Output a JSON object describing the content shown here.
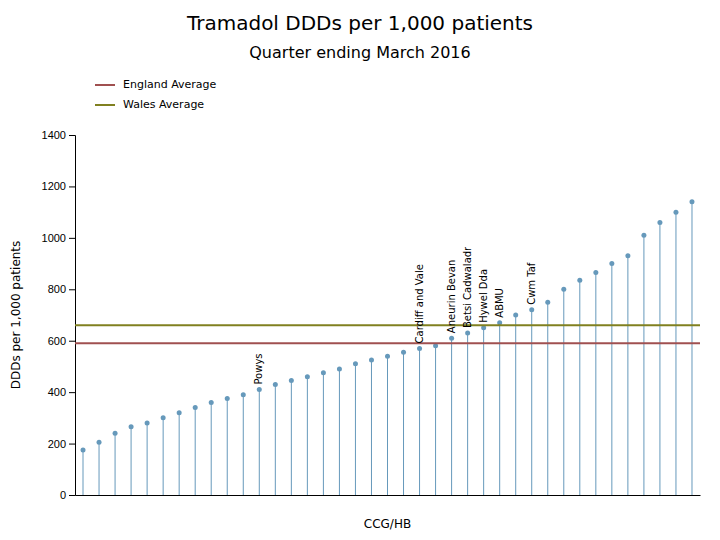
{
  "chart_data": {
    "type": "lollipop",
    "title": "Tramadol DDDs per 1,000 patients",
    "subtitle": "Quarter ending March 2016",
    "x_label": "CCG/HB",
    "y_label": "DDDs per 1,000 patients",
    "values": [
      175,
      205,
      240,
      265,
      280,
      300,
      320,
      340,
      360,
      375,
      390,
      410,
      430,
      445,
      460,
      475,
      490,
      510,
      525,
      540,
      555,
      570,
      580,
      610,
      630,
      650,
      670,
      700,
      720,
      750,
      800,
      835,
      865,
      900,
      930,
      1010,
      1060,
      1100,
      1140
    ],
    "color": "#6699BB",
    "reference_lines": [
      {
        "name": "England Average",
        "value": 590,
        "color": "#A05050"
      },
      {
        "name": "Wales Average",
        "value": 660,
        "color": "#808020"
      }
    ],
    "annotations": [
      {
        "text": "Powys",
        "index": 11
      },
      {
        "text": "Cardiff and Vale",
        "index": 21
      },
      {
        "text": "Aneurin Bevan",
        "index": 23
      },
      {
        "text": "Betsi Cadwaladr",
        "index": 24
      },
      {
        "text": "Hywel Dda",
        "index": 25
      },
      {
        "text": "ABMU",
        "index": 26
      },
      {
        "text": "Cwm Taf",
        "index": 28
      }
    ],
    "ylim": [
      0,
      1400
    ],
    "yticks": [
      0,
      200,
      400,
      600,
      800,
      1000,
      1200,
      1400
    ],
    "tick_labels": "y",
    "grid": false,
    "legend": "upper left"
  }
}
